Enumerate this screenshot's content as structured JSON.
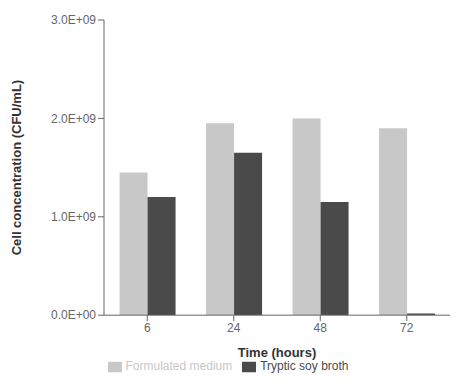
{
  "chart_data": {
    "type": "bar",
    "categories": [
      "6",
      "24",
      "48",
      "72"
    ],
    "series": [
      {
        "name": "Formulated medium",
        "color": "#c8c8c8",
        "values": [
          1450000000.0,
          1950000000.0,
          2000000000.0,
          1900000000.0
        ]
      },
      {
        "name": "Tryptic soy broth",
        "color": "#4a4a4a",
        "values": [
          1200000000.0,
          1650000000.0,
          1150000000.0,
          18000000.0
        ]
      }
    ],
    "xlabel": "Time (hours)",
    "ylabel": "Cell concentration (CFU/mL)",
    "ylim": [
      0,
      3000000000.0
    ],
    "yticks": [
      {
        "value": 0.0,
        "label": "0.0E+00"
      },
      {
        "value": 1000000000.0,
        "label": "1.0E+09"
      },
      {
        "value": 2000000000.0,
        "label": "2.0E+09"
      },
      {
        "value": 3000000000.0,
        "label": "3.0E+09"
      }
    ],
    "grid": false,
    "legend": "bottom"
  }
}
